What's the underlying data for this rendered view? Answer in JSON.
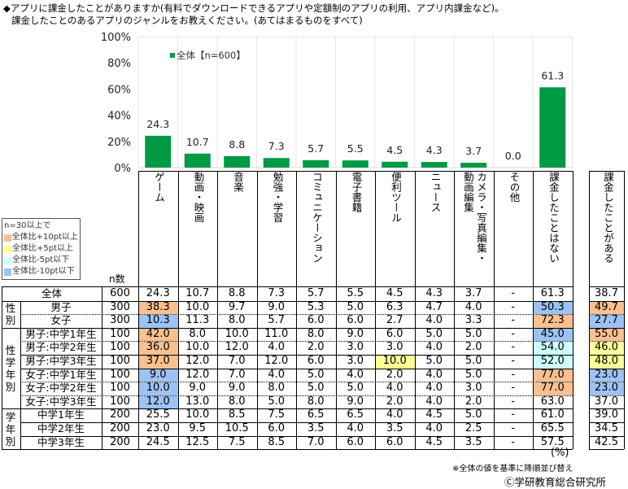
{
  "question": {
    "line1": "◆アプリに課金したことがありますか(有料でダウンロードできるアプリや定額制のアプリの利用、アプリ内課金など)。",
    "line2": "課金したことのあるアプリのジャンルをお教えください。(あてはまるものをすべて)"
  },
  "chart_data": {
    "type": "bar",
    "title": "",
    "legend": {
      "label": "全体【n=600】",
      "position": "top-left"
    },
    "ylim": [
      0,
      100
    ],
    "yticks": [
      "0%",
      "20%",
      "40%",
      "60%",
      "80%",
      "100%"
    ],
    "ytick_values": [
      0,
      20,
      40,
      60,
      80,
      100
    ],
    "categories": [
      "ゲーム",
      "動画・映画",
      "音楽",
      "勉強・学習",
      "コミュニケーション",
      "電子書籍",
      "便利ツール",
      "ニュース",
      "カメラ・写真編集・動画編集",
      "その他",
      "課金したことはない"
    ],
    "values": [
      24.3,
      10.7,
      8.8,
      7.3,
      5.7,
      5.5,
      4.5,
      4.3,
      3.7,
      0.0,
      61.3
    ],
    "value_labels": [
      "24.3",
      "10.7",
      "8.8",
      "7.3",
      "5.7",
      "5.5",
      "4.5",
      "4.3",
      "3.7",
      "0.0",
      "61.3"
    ],
    "bar_color": "#009944",
    "grid": true
  },
  "table": {
    "n_header": "n数",
    "extra_header": "課金したことがある",
    "headers_vertical": [
      "ゲーム",
      "動画・映画",
      "音楽",
      "勉強・学習",
      "コミュニケーション",
      "電子書籍",
      "便利ツール",
      "ニュース",
      "カメラ・写真編集・",
      "その他",
      "課金したことはない"
    ],
    "header_camera_second": "動画編集",
    "groups": [
      {
        "label": "性別"
      },
      {
        "label": "性学年別"
      },
      {
        "label": "学年別"
      }
    ],
    "rows": [
      {
        "label": "全体",
        "n": "600",
        "values": [
          "24.3",
          "10.7",
          "8.8",
          "7.3",
          "5.7",
          "5.5",
          "4.5",
          "4.3",
          "3.7",
          "-",
          "61.3"
        ],
        "extra": "38.7",
        "hl": [
          "",
          "",
          "",
          "",
          "",
          "",
          "",
          "",
          "",
          "",
          ""
        ],
        "extra_hl": ""
      },
      {
        "label": "男子",
        "n": "300",
        "values": [
          "38.3",
          "10.0",
          "9.7",
          "9.0",
          "5.3",
          "5.0",
          "6.3",
          "4.7",
          "4.0",
          "-",
          "50.3"
        ],
        "extra": "49.7",
        "hl": [
          "p10",
          "",
          "",
          "",
          "",
          "",
          "",
          "",
          "",
          "",
          "m10"
        ],
        "extra_hl": "p10"
      },
      {
        "label": "女子",
        "n": "300",
        "values": [
          "10.3",
          "11.3",
          "8.0",
          "5.7",
          "6.0",
          "6.0",
          "2.7",
          "4.0",
          "3.3",
          "-",
          "72.3"
        ],
        "extra": "27.7",
        "hl": [
          "m10",
          "",
          "",
          "",
          "",
          "",
          "",
          "",
          "",
          "",
          "p10"
        ],
        "extra_hl": "m10"
      },
      {
        "label": "男子:中学1年生",
        "n": "100",
        "values": [
          "42.0",
          "8.0",
          "10.0",
          "11.0",
          "8.0",
          "9.0",
          "6.0",
          "5.0",
          "5.0",
          "-",
          "45.0"
        ],
        "extra": "55.0",
        "hl": [
          "p10",
          "",
          "",
          "",
          "",
          "",
          "",
          "",
          "",
          "",
          "m10"
        ],
        "extra_hl": "p10"
      },
      {
        "label": "男子:中学2年生",
        "n": "100",
        "values": [
          "36.0",
          "10.0",
          "12.0",
          "4.0",
          "2.0",
          "3.0",
          "3.0",
          "4.0",
          "2.0",
          "-",
          "54.0"
        ],
        "extra": "46.0",
        "hl": [
          "p10",
          "",
          "",
          "",
          "",
          "",
          "",
          "",
          "",
          "",
          "m5"
        ],
        "extra_hl": "p5"
      },
      {
        "label": "男子:中学3年生",
        "n": "100",
        "values": [
          "37.0",
          "12.0",
          "7.0",
          "12.0",
          "6.0",
          "3.0",
          "10.0",
          "5.0",
          "5.0",
          "-",
          "52.0"
        ],
        "extra": "48.0",
        "hl": [
          "p10",
          "",
          "",
          "",
          "",
          "",
          "p5",
          "",
          "",
          "",
          "m5"
        ],
        "extra_hl": "p5"
      },
      {
        "label": "女子:中学1年生",
        "n": "100",
        "values": [
          "9.0",
          "12.0",
          "7.0",
          "4.0",
          "5.0",
          "4.0",
          "2.0",
          "4.0",
          "5.0",
          "-",
          "77.0"
        ],
        "extra": "23.0",
        "hl": [
          "m10",
          "",
          "",
          "",
          "",
          "",
          "",
          "",
          "",
          "",
          "p10"
        ],
        "extra_hl": "m10"
      },
      {
        "label": "女子:中学2年生",
        "n": "100",
        "values": [
          "10.0",
          "9.0",
          "9.0",
          "8.0",
          "5.0",
          "5.0",
          "4.0",
          "4.0",
          "3.0",
          "-",
          "77.0"
        ],
        "extra": "23.0",
        "hl": [
          "m10",
          "",
          "",
          "",
          "",
          "",
          "",
          "",
          "",
          "",
          "p10"
        ],
        "extra_hl": "m10"
      },
      {
        "label": "女子:中学3年生",
        "n": "100",
        "values": [
          "12.0",
          "13.0",
          "8.0",
          "5.0",
          "8.0",
          "9.0",
          "2.0",
          "4.0",
          "2.0",
          "-",
          "63.0"
        ],
        "extra": "37.0",
        "hl": [
          "m10",
          "",
          "",
          "",
          "",
          "",
          "",
          "",
          "",
          "",
          ""
        ],
        "extra_hl": ""
      },
      {
        "label": "中学1年生",
        "n": "200",
        "values": [
          "25.5",
          "10.0",
          "8.5",
          "7.5",
          "6.5",
          "6.5",
          "4.0",
          "4.5",
          "5.0",
          "-",
          "61.0"
        ],
        "extra": "39.0",
        "hl": [
          "",
          "",
          "",
          "",
          "",
          "",
          "",
          "",
          "",
          "",
          ""
        ],
        "extra_hl": ""
      },
      {
        "label": "中学2年生",
        "n": "200",
        "values": [
          "23.0",
          "9.5",
          "10.5",
          "6.0",
          "3.5",
          "4.0",
          "3.5",
          "4.0",
          "2.5",
          "-",
          "65.5"
        ],
        "extra": "34.5",
        "hl": [
          "",
          "",
          "",
          "",
          "",
          "",
          "",
          "",
          "",
          "",
          ""
        ],
        "extra_hl": ""
      },
      {
        "label": "中学3年生",
        "n": "200",
        "values": [
          "24.5",
          "12.5",
          "7.5",
          "8.5",
          "7.0",
          "6.0",
          "6.0",
          "4.5",
          "3.5",
          "-",
          "57.5"
        ],
        "extra": "42.5",
        "hl": [
          "",
          "",
          "",
          "",
          "",
          "",
          "",
          "",
          "",
          "",
          ""
        ],
        "extra_hl": ""
      }
    ],
    "highlight_colors": {
      "p10": "#fac090",
      "p5": "#ffff99",
      "m5": "#ccffff",
      "m10": "#9dc3f5"
    }
  },
  "legend_box": {
    "title": "n=30以上で",
    "items": [
      {
        "label": "全体比+10pt以上",
        "color": "#fac090"
      },
      {
        "label": "全体比+5pt以上",
        "color": "#ffff99"
      },
      {
        "label": "全体比-5pt以下",
        "color": "#ccffff"
      },
      {
        "label": "全体比-10pt以下",
        "color": "#9dc3f5"
      }
    ]
  },
  "footer": {
    "unit": "(%)",
    "sort_note": "※全体の値を基準に降順並び替え",
    "copyright": "Ⓒ学研教育総合研究所"
  }
}
